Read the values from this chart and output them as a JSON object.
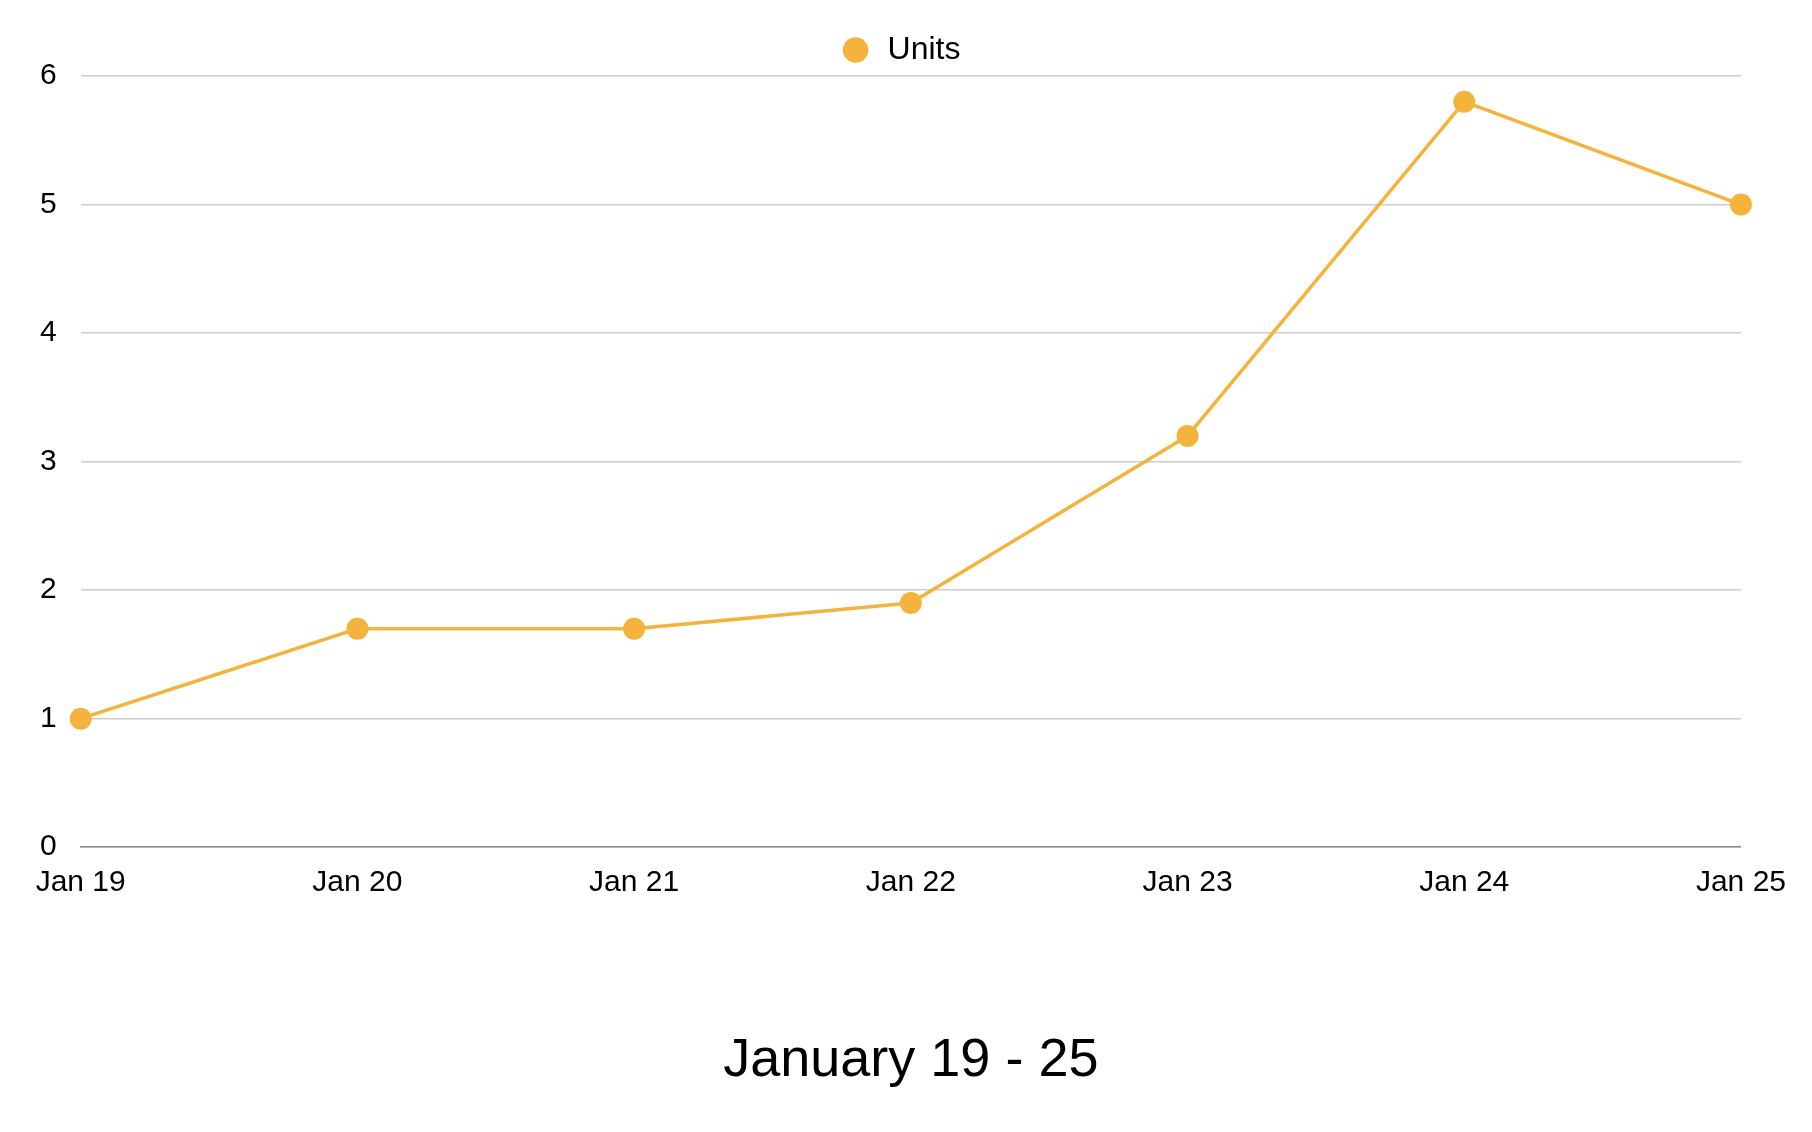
{
  "chart_data": {
    "type": "line",
    "xlabel": "January 19 - 25",
    "categories": [
      "Jan 19",
      "Jan 20",
      "Jan 21",
      "Jan 22",
      "Jan 23",
      "Jan 24",
      "Jan 25"
    ],
    "series": [
      {
        "name": "Units",
        "color": "#f3b33d",
        "values": [
          1,
          1.7,
          1.7,
          1.9,
          3.2,
          5.8,
          5.0
        ]
      }
    ],
    "ylim": [
      0,
      6
    ],
    "yticks": [
      0,
      1,
      2,
      3,
      4,
      5,
      6
    ],
    "grid": "y",
    "legend": "top",
    "marker": "circle",
    "line_style": "solid"
  }
}
